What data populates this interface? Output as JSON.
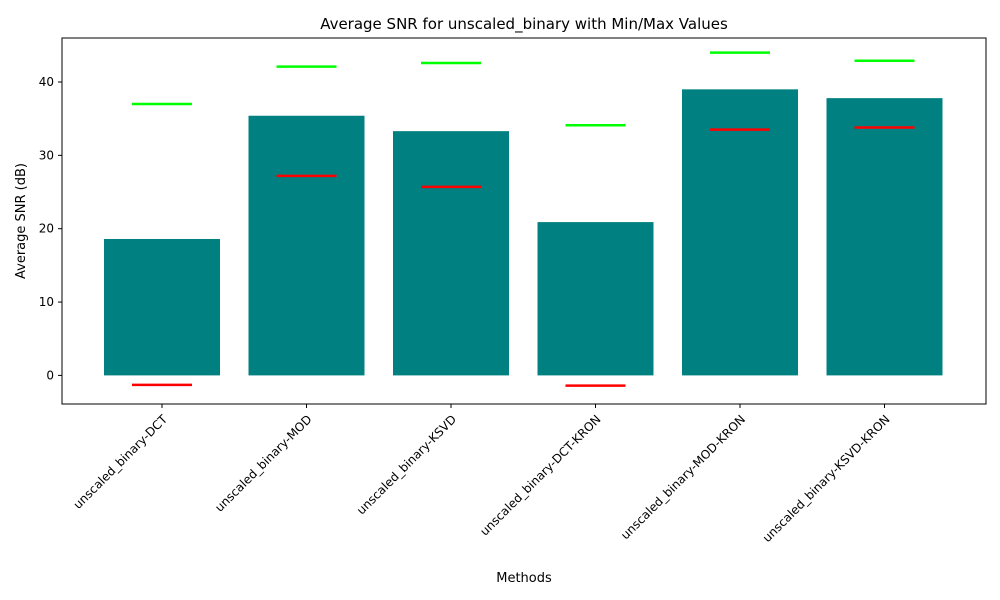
{
  "chart_data": {
    "type": "bar",
    "title": "Average SNR for unscaled_binary with Min/Max Values",
    "xlabel": "Methods",
    "ylabel": "Average SNR (dB)",
    "ylim": [
      -3.9,
      46.0
    ],
    "yticks": [
      0,
      10,
      20,
      30,
      40
    ],
    "categories": [
      "unscaled_binary-DCT",
      "unscaled_binary-MOD",
      "unscaled_binary-KSVD",
      "unscaled_binary-DCT-KRON",
      "unscaled_binary-MOD-KRON",
      "unscaled_binary-KSVD-KRON"
    ],
    "values": [
      18.6,
      35.4,
      33.3,
      20.9,
      39.0,
      37.8
    ],
    "min_values": [
      -1.3,
      27.2,
      25.7,
      -1.4,
      33.5,
      33.8
    ],
    "max_values": [
      37.0,
      42.1,
      42.6,
      34.1,
      44.0,
      42.9
    ],
    "grid": false,
    "colors": {
      "bar": "#008080",
      "min": "#ff0000",
      "max": "#00ff00"
    }
  }
}
